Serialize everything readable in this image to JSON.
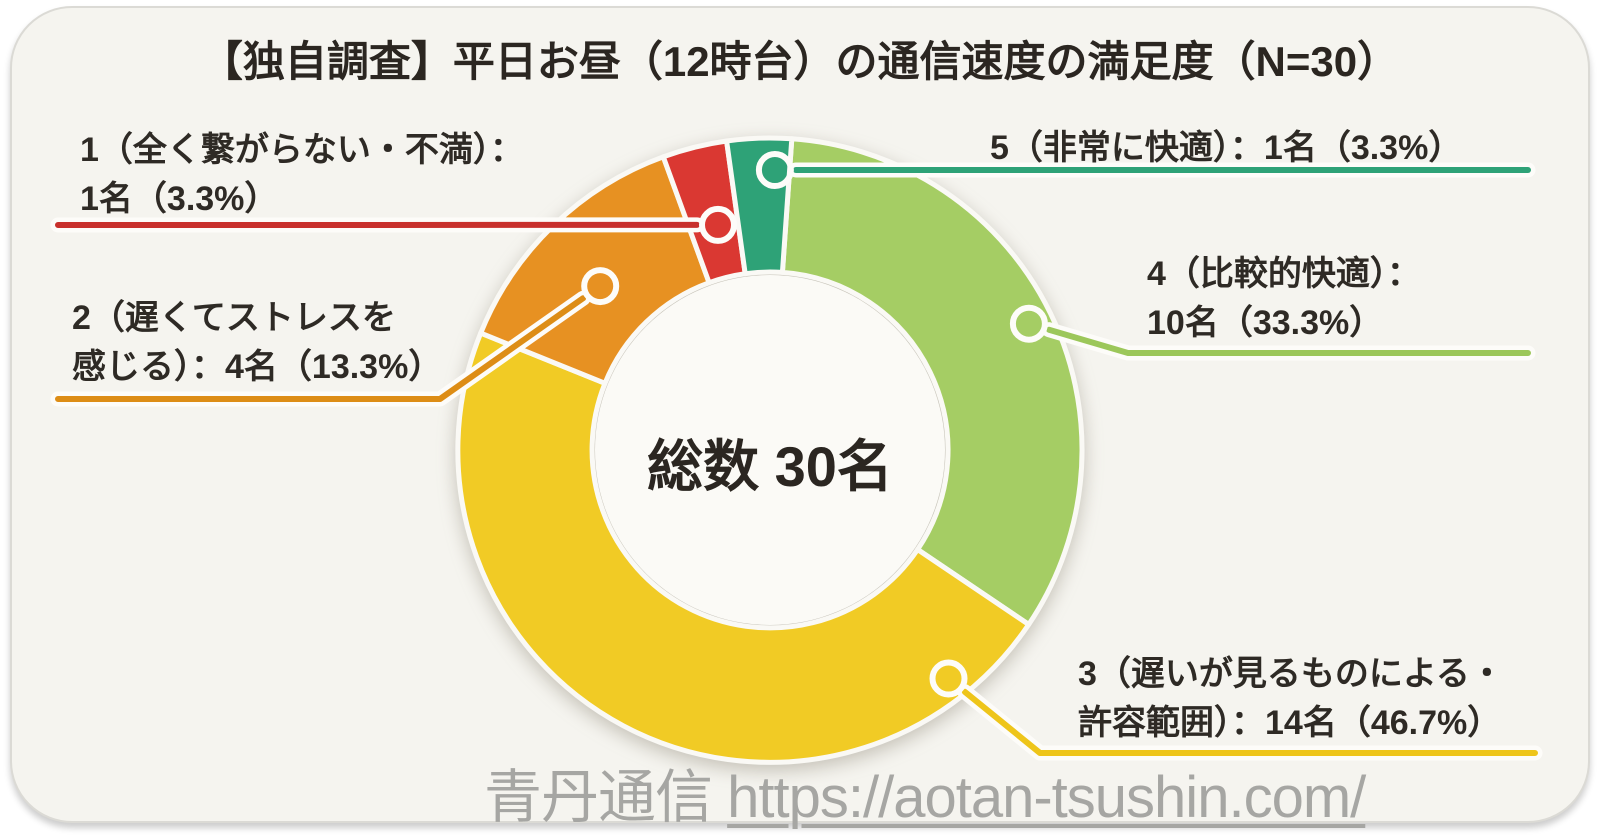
{
  "chart_data": {
    "type": "pie",
    "variant": "donut",
    "title": "【独自調査】平日お昼（12時台）の通信速度の満足度（N=30）",
    "n_total": 30,
    "center_label": "総数 30名",
    "legend_position": "callout-labels-around-donut",
    "draw_order_note": "segments listed in clockwise order starting at 12 o'clock",
    "segments": [
      {
        "rating": "4",
        "name": "比較的快適",
        "count": 10,
        "percent": "33.3%",
        "color": "#A5CD64",
        "line_color": "#9CC75A",
        "label_lines": [
          "4（比較的快適）：",
          "10名（33.3%）"
        ]
      },
      {
        "rating": "3",
        "name": "遅いが見るものによる・許容範囲",
        "count": 14,
        "percent": "46.7%",
        "color": "#F1CB25",
        "line_color": "#EEC51A",
        "label_lines": [
          "3（遅いが見るものによる・",
          "許容範囲）：14名（46.7%）"
        ]
      },
      {
        "rating": "2",
        "name": "遅くてストレスを感じる",
        "count": 4,
        "percent": "13.3%",
        "color": "#E79122",
        "line_color": "#DD8D16",
        "label_lines": [
          "2（遅くてストレスを",
          "感じる）：4名（13.3%）"
        ]
      },
      {
        "rating": "1",
        "name": "全く繋がらない・不満",
        "count": 1,
        "percent": "3.3%",
        "color": "#DA3832",
        "line_color": "#C8302C",
        "label_lines": [
          "1（全く繋がらない・不満）：",
          "1名（3.3%）"
        ]
      },
      {
        "rating": "5",
        "name": "非常に快適",
        "count": 1,
        "percent": "3.3%",
        "color": "#2EA277",
        "line_color": "#2EA277",
        "label_lines": [
          "5（非常に快適）：1名（3.3%）"
        ]
      }
    ]
  },
  "watermark": {
    "site_name": "青丹通信",
    "url": "https://aotan-tsushin.com/"
  }
}
